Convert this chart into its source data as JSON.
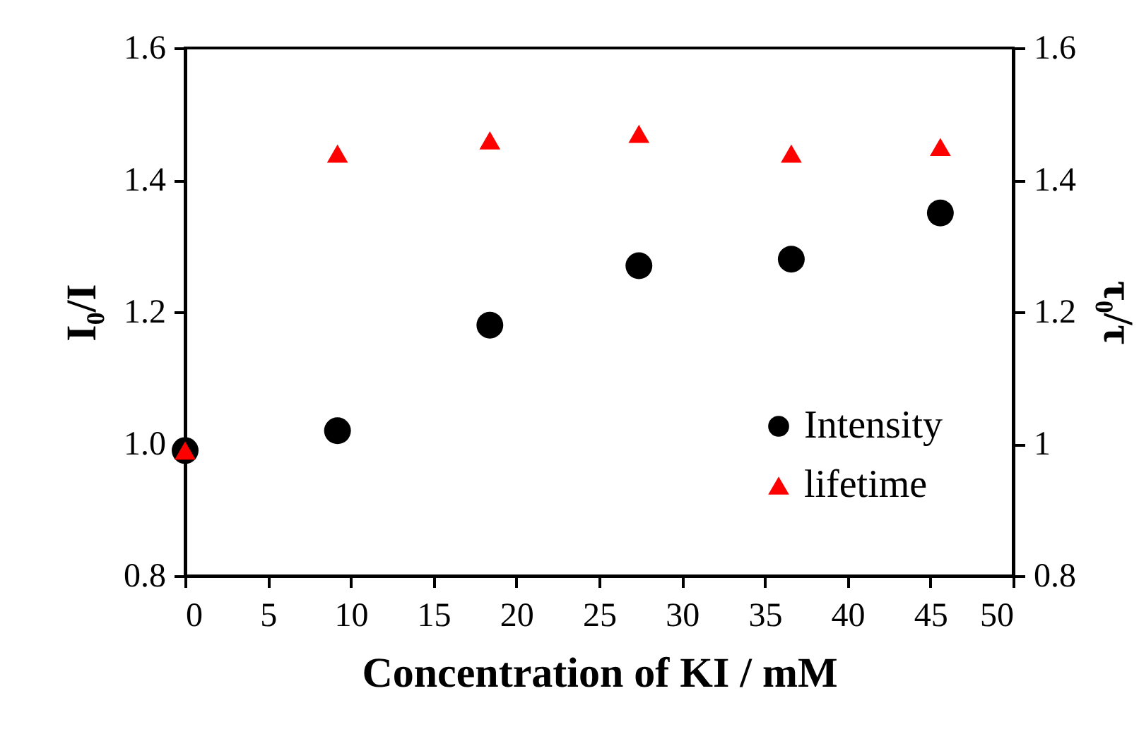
{
  "chart_data": {
    "type": "scatter",
    "xlabel": "Concentration of KI / mM",
    "ylabel": "I₀/I",
    "y2label": "τ₀/τ",
    "xlim": [
      0,
      50
    ],
    "xticks": [
      0,
      5,
      10,
      15,
      20,
      25,
      30,
      35,
      40,
      45,
      50
    ],
    "ylim": [
      0.8,
      1.6
    ],
    "yticks": [
      0.8,
      {
        "value": 1,
        "label": "1.0"
      },
      1.2,
      1.4,
      1.6
    ],
    "y2lim": [
      0.8,
      1.6
    ],
    "y2ticks": [
      0.8,
      1,
      1.2,
      1.4,
      1.6
    ],
    "x": [
      0,
      9.2,
      18.4,
      27.4,
      36.6,
      45.6
    ],
    "grid": false,
    "legend": "bottom right",
    "series": [
      {
        "name": "Intensity",
        "color": "#000000",
        "marker": "circle",
        "values": [
          0.99,
          1.02,
          1.18,
          1.27,
          1.28,
          1.35
        ]
      },
      {
        "name": "lifetime",
        "color": "#ff0000",
        "marker": "triangle",
        "axis": "y2",
        "values": [
          0.99,
          1.44,
          1.46,
          1.47,
          1.44,
          1.45
        ]
      }
    ]
  }
}
